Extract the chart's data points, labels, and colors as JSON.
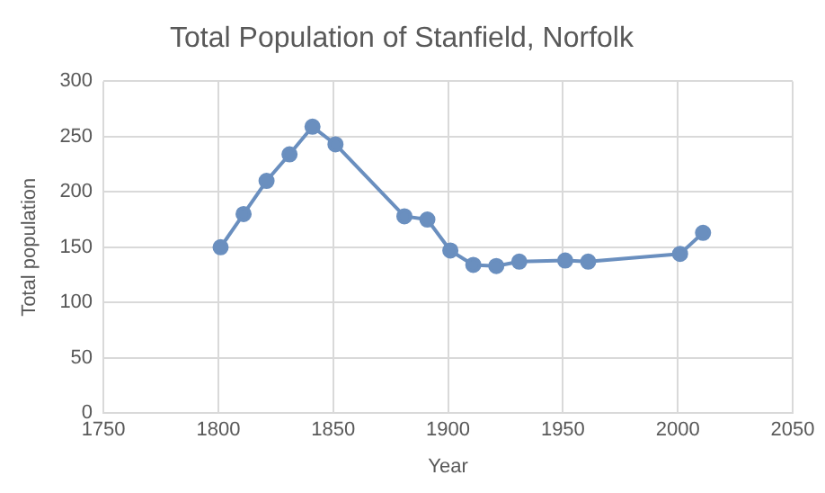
{
  "chart_data": {
    "type": "line",
    "title": "Total Population of Stanfield, Norfolk",
    "xlabel": "Year",
    "ylabel": "Total population",
    "x": [
      1801,
      1811,
      1821,
      1831,
      1841,
      1851,
      1881,
      1891,
      1901,
      1911,
      1921,
      1931,
      1951,
      1961,
      2001,
      2011
    ],
    "series": [
      {
        "color": "#6a8fbf",
        "values": [
          150,
          180,
          210,
          234,
          259,
          243,
          178,
          175,
          147,
          134,
          133,
          137,
          138,
          137,
          144,
          163
        ]
      }
    ],
    "xlim": [
      1750,
      2050
    ],
    "xticks": [
      1750,
      1800,
      1850,
      1900,
      1950,
      2000,
      2050
    ],
    "ylim": [
      0,
      300
    ],
    "yticks": [
      0,
      50,
      100,
      150,
      200,
      250,
      300
    ],
    "grid": true,
    "legend": false,
    "marker": "circle",
    "line_style": "solid"
  }
}
